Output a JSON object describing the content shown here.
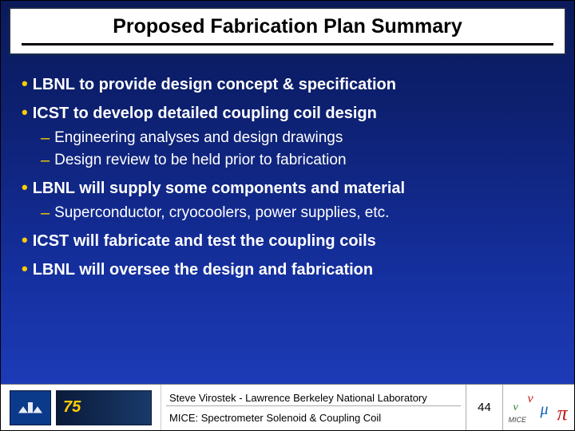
{
  "title": "Proposed Fabrication Plan Summary",
  "colors": {
    "bg_top": "#0a1a5a",
    "bg_bottom": "#2040c0",
    "bullet_accent": "#ffcc00",
    "text": "#ffffff",
    "title_text": "#000000",
    "title_bg": "#ffffff",
    "footer_bg": "#ffffff"
  },
  "bullets": [
    {
      "text": "LBNL to provide design concept & specification",
      "sub": []
    },
    {
      "text": "ICST to develop detailed coupling coil design",
      "sub": [
        "Engineering analyses and design drawings",
        "Design review to be held prior to fabrication"
      ]
    },
    {
      "text": "LBNL will supply some components and material",
      "sub": [
        "Superconductor, cryocoolers, power supplies, etc."
      ]
    },
    {
      "text": "ICST will fabricate and test the coupling coils",
      "sub": []
    },
    {
      "text": "LBNL will oversee the design and fabrication",
      "sub": []
    }
  ],
  "footer": {
    "logo_b_text": "75",
    "line1": "Steve Virostek - Lawrence Berkeley National Laboratory",
    "line2": "MICE: Spectrometer Solenoid & Coupling Coil",
    "page_number": "44",
    "mice_caption": "MICE"
  }
}
